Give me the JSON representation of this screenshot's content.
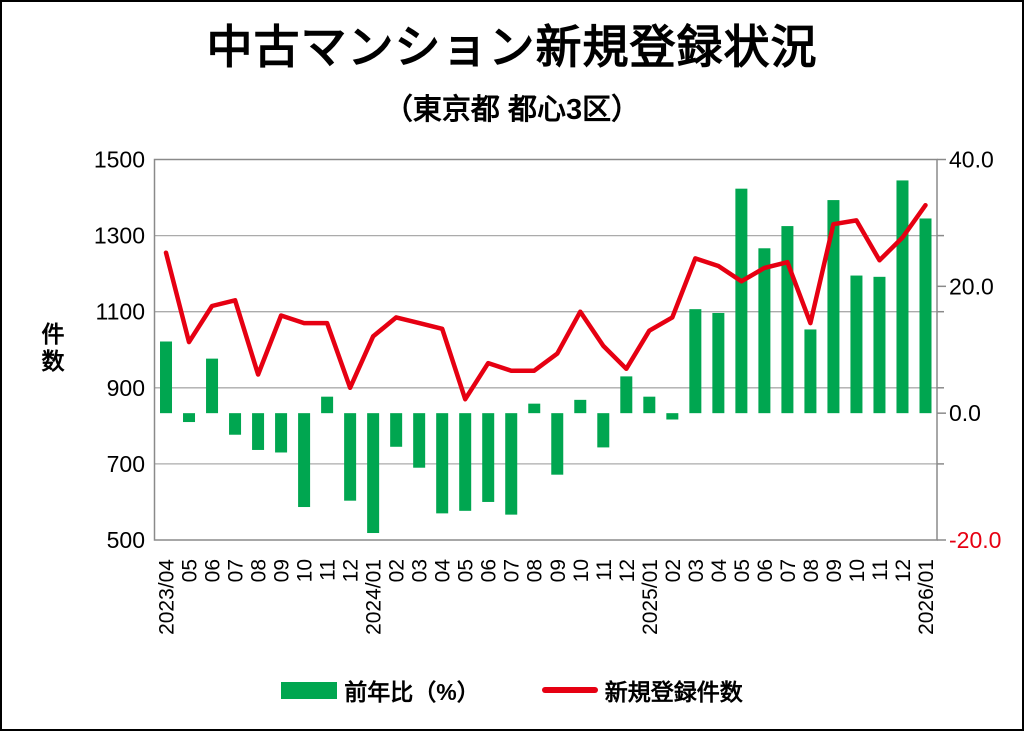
{
  "title": "中古マンション新規登録状況",
  "subtitle": "（東京都 都心3区）",
  "left_axis_title": "件数",
  "legend": {
    "bar_label": "前年比（%）",
    "line_label": "新規登録件数"
  },
  "colors": {
    "bar": "#00a650",
    "line": "#e60012",
    "grid": "#ababab",
    "plot_border": "#8a8a8a",
    "text": "#000000",
    "negative_axis_label": "#e60012",
    "background": "#ffffff"
  },
  "chart_data": {
    "type": "bar+line combo",
    "title": "中古マンション新規登録状況",
    "subtitle": "（東京都 都心3区）",
    "grid": "horizontal",
    "legend_position": "bottom",
    "categories": [
      "2023/04",
      "05",
      "06",
      "07",
      "08",
      "09",
      "10",
      "11",
      "12",
      "2024/01",
      "02",
      "03",
      "04",
      "05",
      "06",
      "07",
      "08",
      "09",
      "10",
      "11",
      "12",
      "2025/01",
      "02",
      "03",
      "04",
      "05",
      "06",
      "07",
      "08",
      "09",
      "10",
      "11",
      "12",
      "2026/01"
    ],
    "series": [
      {
        "name": "前年比（%）",
        "type": "bar",
        "axis": "right",
        "values": [
          11.3,
          -1.4,
          8.6,
          -3.4,
          -5.8,
          -6.2,
          -14.8,
          2.6,
          -13.8,
          -18.9,
          -5.3,
          -8.6,
          -15.8,
          -15.4,
          -14,
          -16,
          1.5,
          -9.7,
          2.1,
          -5.4,
          5.8,
          2.6,
          -1,
          16.4,
          15.8,
          35.4,
          26,
          29.5,
          13.2,
          33.6,
          21.7,
          21.5,
          36.7,
          30.7
        ]
      },
      {
        "name": "新規登録件数",
        "type": "line",
        "axis": "left",
        "values": [
          1255,
          1020,
          1115,
          1130,
          935,
          1090,
          1070,
          1070,
          900,
          1035,
          1085,
          1070,
          1055,
          870,
          965,
          945,
          945,
          990,
          1100,
          1010,
          950,
          1050,
          1085,
          1240,
          1220,
          1180,
          1215,
          1230,
          1070,
          1330,
          1340,
          1235,
          1295,
          1380
        ]
      }
    ],
    "left_axis": {
      "title": "件数",
      "min": 500,
      "max": 1500,
      "ticks": [
        1500,
        1300,
        1100,
        900,
        700,
        500
      ],
      "tick_labels": [
        "1500",
        "1300",
        "1100",
        "900",
        "700",
        "500"
      ]
    },
    "right_axis": {
      "min": -20,
      "max": 40,
      "ticks": [
        40,
        20,
        0,
        -20
      ],
      "tick_labels": [
        "40.0",
        "20.0",
        "0.0",
        "-20.0"
      ]
    }
  }
}
